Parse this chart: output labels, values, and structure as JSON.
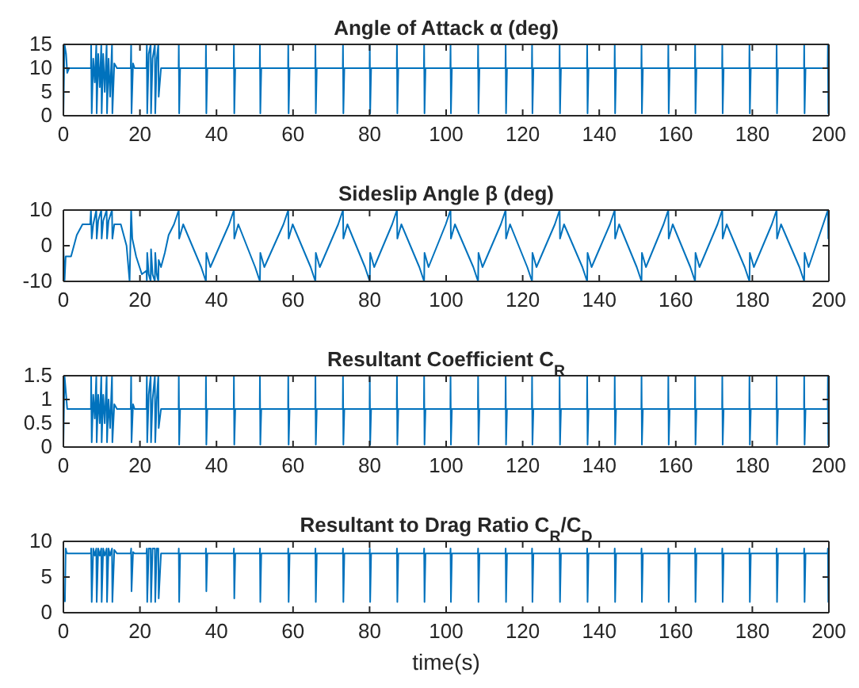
{
  "chart_data": [
    {
      "type": "line",
      "title": "Angle of Attack α (deg)",
      "color": "#0072bd",
      "xlim": [
        0,
        200
      ],
      "ylim": [
        0,
        15
      ],
      "xticks": [
        0,
        20,
        40,
        60,
        80,
        100,
        120,
        140,
        160,
        180,
        200
      ],
      "yticks": [
        0,
        5,
        10,
        15
      ],
      "x": [
        0,
        0.3,
        0.7,
        1,
        1.5,
        7.2,
        7.25,
        7.4,
        7.8,
        8.2,
        8.6,
        8.7,
        9.1,
        9.5,
        9.9,
        10,
        10.4,
        10.8,
        11.3,
        11.4,
        11.8,
        12.2,
        12.7,
        12.8,
        13.3,
        14,
        17.6,
        17.7,
        17.8,
        18.2,
        18.6,
        21.7,
        21.8,
        21.9,
        22.3,
        22.8,
        22.9,
        23.3,
        23.9,
        24,
        24.4,
        24.8,
        24.9,
        25.5,
        30.1,
        30.15,
        30.25,
        30.5,
        37.2,
        37.25,
        37.35,
        37.6,
        44.5,
        44.55,
        44.65,
        44.9,
        51.3,
        51.35,
        51.45,
        51.7,
        58.7,
        58.75,
        58.85,
        59.1,
        65.8,
        65.85,
        65.95,
        66.2,
        73,
        73.05,
        73.15,
        73.4,
        80,
        80.05,
        80.15,
        80.4,
        87.1,
        87.15,
        87.25,
        87.5,
        94.2,
        94.25,
        94.35,
        94.6,
        101.1,
        101.15,
        101.25,
        101.5,
        108.3,
        108.35,
        108.45,
        108.7,
        115.5,
        115.55,
        115.65,
        115.9,
        122.4,
        122.45,
        122.55,
        122.8,
        129.6,
        129.65,
        129.75,
        130,
        136.8,
        136.85,
        136.95,
        137.2,
        144,
        144.05,
        144.15,
        144.4,
        151,
        151.05,
        151.15,
        151.4,
        158,
        158.05,
        158.15,
        158.4,
        165,
        165.05,
        165.15,
        165.4,
        172.1,
        172.15,
        172.25,
        172.5,
        179.2,
        179.25,
        179.35,
        179.6,
        186.3,
        186.35,
        186.45,
        186.7,
        193.5,
        193.55,
        193.65,
        193.9,
        199.7,
        199.75,
        199.85,
        200
      ],
      "values": [
        0,
        15,
        13,
        9,
        10,
        10,
        15,
        0.5,
        12,
        7,
        15,
        0.5,
        13,
        6,
        15,
        0.5,
        13,
        5,
        15,
        0.5,
        12,
        4,
        15,
        0.5,
        11,
        10,
        10,
        15,
        0.5,
        11,
        10,
        10,
        15,
        0.5,
        13,
        15,
        0.5,
        12,
        15,
        0.5,
        12,
        15,
        4,
        10,
        10,
        15,
        0.5,
        10,
        10,
        15,
        0.5,
        10,
        10,
        15,
        0.5,
        10,
        10,
        15,
        0.5,
        10,
        10,
        15,
        0.5,
        10,
        10,
        15,
        0.5,
        10,
        10,
        15,
        0.5,
        10,
        10,
        15,
        0.5,
        10,
        10,
        15,
        0.5,
        10,
        10,
        15,
        0.5,
        10,
        10,
        15,
        0.5,
        10,
        10,
        15,
        0.5,
        10,
        10,
        15,
        0.5,
        10,
        10,
        15,
        0.5,
        10,
        10,
        15,
        0.5,
        10,
        10,
        15,
        0.5,
        10,
        10,
        15,
        0.5,
        10,
        10,
        15,
        0.5,
        10,
        10,
        15,
        0.5,
        10,
        10,
        15,
        0.5,
        10,
        10,
        15,
        0.5,
        10,
        10,
        15,
        0.5,
        10,
        10,
        15,
        0.5,
        10,
        10,
        15,
        0.5,
        10,
        10,
        15,
        0.5,
        10
      ]
    },
    {
      "type": "line",
      "title": "Sideslip Angle β (deg)",
      "color": "#0072bd",
      "xlim": [
        0,
        200
      ],
      "ylim": [
        -10,
        10
      ],
      "xticks": [
        0,
        20,
        40,
        60,
        80,
        100,
        120,
        140,
        160,
        180,
        200
      ],
      "yticks": [
        -10,
        0,
        10
      ],
      "x": [
        0,
        0.3,
        0.6,
        2,
        3.5,
        5,
        7,
        7.2,
        7.4,
        7.8,
        8.6,
        8.7,
        9.1,
        9.9,
        10,
        10.4,
        11.3,
        11.4,
        11.8,
        12.7,
        12.8,
        13.3,
        15,
        16.5,
        17.3,
        17.7,
        18,
        19,
        20.5,
        21.7,
        21.8,
        21.9,
        22.3,
        22.8,
        22.9,
        23.3,
        23.9,
        24,
        24.4,
        24.8,
        24.9,
        25.5,
        26.5,
        27.5,
        28.9,
        30.15,
        30.25,
        31.3,
        33.65,
        36,
        37.25,
        37.35,
        38.4,
        40.85,
        43.3,
        44.55,
        44.65,
        45.7,
        47.9,
        50.1,
        51.35,
        51.45,
        52.5,
        55,
        57.5,
        58.75,
        58.85,
        59.9,
        62.25,
        64.6,
        65.85,
        65.95,
        67,
        69.4,
        71.8,
        73.05,
        73.15,
        74.2,
        76.5,
        78.8,
        80.05,
        80.15,
        81.2,
        83.55,
        85.9,
        87.15,
        87.25,
        88.3,
        90.65,
        93,
        94.25,
        94.35,
        95.4,
        97.65,
        99.9,
        101.15,
        101.25,
        102.3,
        104.7,
        107.1,
        108.35,
        108.45,
        109.5,
        111.9,
        114.3,
        115.55,
        115.65,
        116.7,
        118.95,
        121.2,
        122.45,
        122.55,
        123.6,
        126,
        128.4,
        129.65,
        129.75,
        130.8,
        133.2,
        135.6,
        136.85,
        136.95,
        138,
        140.4,
        142.8,
        144.05,
        144.15,
        145.2,
        147.5,
        149.8,
        151.05,
        151.15,
        152.2,
        154.5,
        156.8,
        158.05,
        158.15,
        159.2,
        161.5,
        163.8,
        165.05,
        165.15,
        166.2,
        168.55,
        170.9,
        172.15,
        172.25,
        173.3,
        175.65,
        178,
        179.25,
        179.35,
        180.4,
        182.75,
        185.1,
        186.35,
        186.45,
        187.5,
        189.9,
        192.3,
        193.55,
        193.65,
        194.7,
        196.6,
        198.5,
        199.75,
        199.85,
        200
      ],
      "values": [
        0,
        -10,
        -3,
        -3,
        3,
        6,
        6,
        10,
        2,
        6,
        10,
        2,
        7,
        10,
        2,
        7,
        10,
        2,
        7,
        10,
        2,
        6,
        6,
        0,
        -10,
        10,
        2,
        -3,
        -8,
        -7,
        -10,
        -2,
        -8,
        -10,
        -1,
        -8,
        -10,
        -2,
        -8,
        -10,
        -4,
        -6,
        -2,
        3,
        6,
        10,
        2,
        6,
        0,
        -6,
        -10,
        -2,
        -6,
        0,
        6,
        10,
        2,
        6,
        0,
        -6,
        -10,
        -2,
        -6,
        0,
        6,
        10,
        2,
        6,
        0,
        -6,
        -10,
        -2,
        -6,
        0,
        6,
        10,
        2,
        6,
        0,
        -6,
        -10,
        -2,
        -6,
        0,
        6,
        10,
        2,
        6,
        0,
        -6,
        -10,
        -2,
        -6,
        0,
        6,
        10,
        2,
        6,
        0,
        -6,
        -10,
        -2,
        -6,
        0,
        6,
        10,
        2,
        6,
        0,
        -6,
        -10,
        -2,
        -6,
        0,
        6,
        10,
        2,
        6,
        0,
        -6,
        -10,
        -2,
        -6,
        0,
        6,
        10,
        2,
        6,
        0,
        -6,
        -10,
        -2,
        -6,
        0,
        6,
        10,
        2,
        6,
        0,
        -6,
        -10,
        -2,
        -6,
        0,
        6,
        10,
        2,
        6,
        0,
        -6,
        -10,
        -2,
        -6,
        0,
        6,
        10,
        2,
        6,
        0,
        -6,
        -10,
        -2,
        -6,
        0,
        6,
        10,
        2,
        6
      ]
    },
    {
      "type": "line",
      "title": "Resultant Coefficient C$_{R}$",
      "color": "#0072bd",
      "xlim": [
        0,
        200
      ],
      "ylim": [
        0,
        1.5
      ],
      "xticks": [
        0,
        20,
        40,
        60,
        80,
        100,
        120,
        140,
        160,
        180,
        200
      ],
      "yticks": [
        0,
        0.5,
        1,
        1.5
      ],
      "x": [
        0,
        0.3,
        0.7,
        1,
        1.5,
        7.2,
        7.25,
        7.4,
        7.8,
        8.2,
        8.6,
        8.7,
        9.1,
        9.5,
        9.9,
        10,
        10.4,
        10.8,
        11.3,
        11.4,
        11.8,
        12.2,
        12.7,
        12.8,
        13.3,
        14,
        17.6,
        17.7,
        17.8,
        18.2,
        18.6,
        21.7,
        21.8,
        21.9,
        22.3,
        22.8,
        22.9,
        23.3,
        23.9,
        24,
        24.4,
        24.8,
        24.9,
        25.5,
        30.1,
        30.15,
        30.25,
        30.5,
        37.2,
        37.25,
        37.35,
        37.6,
        44.5,
        44.55,
        44.65,
        44.9,
        51.3,
        51.35,
        51.45,
        51.7,
        58.7,
        58.75,
        58.85,
        59.1,
        65.8,
        65.85,
        65.95,
        66.2,
        73,
        73.05,
        73.15,
        73.4,
        80,
        80.05,
        80.15,
        80.4,
        87.1,
        87.15,
        87.25,
        87.5,
        94.2,
        94.25,
        94.35,
        94.6,
        101.1,
        101.15,
        101.25,
        101.5,
        108.3,
        108.35,
        108.45,
        108.7,
        115.5,
        115.55,
        115.65,
        115.9,
        122.4,
        122.45,
        122.55,
        122.8,
        129.6,
        129.65,
        129.75,
        130,
        136.8,
        136.85,
        136.95,
        137.2,
        144,
        144.05,
        144.15,
        144.4,
        151,
        151.05,
        151.15,
        151.4,
        158,
        158.05,
        158.15,
        158.4,
        165,
        165.05,
        165.15,
        165.4,
        172.1,
        172.15,
        172.25,
        172.5,
        179.2,
        179.25,
        179.35,
        179.6,
        186.3,
        186.35,
        186.45,
        186.7,
        193.5,
        193.55,
        193.65,
        193.9,
        199.7,
        199.75,
        199.85,
        200
      ],
      "values": [
        0.05,
        1.5,
        1.1,
        0.8,
        0.8,
        0.8,
        1.5,
        0.1,
        1.1,
        0.6,
        1.5,
        0.1,
        1.1,
        0.5,
        1.5,
        0.1,
        1.1,
        0.5,
        1.5,
        0.1,
        1,
        0.4,
        1.5,
        0.1,
        0.9,
        0.8,
        0.8,
        1.5,
        0.1,
        0.9,
        0.8,
        0.8,
        1.5,
        0.1,
        1.1,
        1.5,
        0.1,
        1,
        1.5,
        0.1,
        1,
        1.5,
        0.4,
        0.8,
        0.8,
        1.5,
        0.05,
        0.8,
        0.8,
        1.5,
        0.05,
        0.8,
        0.8,
        1.5,
        0.05,
        0.8,
        0.8,
        1.5,
        0.05,
        0.8,
        0.8,
        1.5,
        0.05,
        0.8,
        0.8,
        1.5,
        0.05,
        0.8,
        0.8,
        1.5,
        0.05,
        0.8,
        0.8,
        1.5,
        0.05,
        0.8,
        0.8,
        1.5,
        0.05,
        0.8,
        0.8,
        1.5,
        0.05,
        0.8,
        0.8,
        1.5,
        0.05,
        0.8,
        0.8,
        1.5,
        0.05,
        0.8,
        0.8,
        1.5,
        0.05,
        0.8,
        0.8,
        1.5,
        0.05,
        0.8,
        0.8,
        1.5,
        0.05,
        0.8,
        0.8,
        1.5,
        0.05,
        0.8,
        0.8,
        1.5,
        0.05,
        0.8,
        0.8,
        1.5,
        0.05,
        0.8,
        0.8,
        1.5,
        0.05,
        0.8,
        0.8,
        1.5,
        0.05,
        0.8,
        0.8,
        1.5,
        0.05,
        0.8,
        0.8,
        1.5,
        0.05,
        0.8,
        0.8,
        1.5,
        0.05,
        0.8,
        0.8,
        1.5,
        0.05,
        0.8,
        0.8,
        1.5,
        0.05,
        0.8
      ]
    },
    {
      "type": "line",
      "title": "Resultant to Drag Ratio C$_{R}$/C$_{D}$",
      "xlabel": "time(s)",
      "color": "#0072bd",
      "xlim": [
        0,
        200
      ],
      "ylim": [
        0,
        10
      ],
      "xticks": [
        0,
        20,
        40,
        60,
        80,
        100,
        120,
        140,
        160,
        180,
        200
      ],
      "yticks": [
        0,
        5,
        10
      ],
      "x": [
        0.4,
        0.6,
        0.8,
        1,
        1.5,
        7.2,
        7.25,
        7.4,
        7.8,
        8.2,
        8.6,
        8.7,
        9.1,
        9.5,
        9.9,
        10,
        10.4,
        10.8,
        11.3,
        11.4,
        11.8,
        12.2,
        12.7,
        12.8,
        13.3,
        14,
        17.6,
        17.7,
        17.8,
        18.2,
        18.6,
        21.7,
        21.8,
        21.9,
        22.3,
        22.8,
        22.9,
        23.3,
        23.9,
        24,
        24.4,
        24.8,
        24.9,
        25.5,
        30.1,
        30.15,
        30.25,
        30.5,
        37.2,
        37.25,
        37.35,
        37.6,
        44.5,
        44.55,
        44.65,
        44.9,
        51.3,
        51.35,
        51.45,
        51.7,
        58.7,
        58.75,
        58.85,
        59.1,
        65.8,
        65.85,
        65.95,
        66.2,
        73,
        73.05,
        73.15,
        73.4,
        80,
        80.05,
        80.15,
        80.4,
        87.1,
        87.15,
        87.25,
        87.5,
        94.2,
        94.25,
        94.35,
        94.6,
        101.1,
        101.15,
        101.25,
        101.5,
        108.3,
        108.35,
        108.45,
        108.7,
        115.5,
        115.55,
        115.65,
        115.9,
        122.4,
        122.45,
        122.55,
        122.8,
        129.6,
        129.65,
        129.75,
        130,
        136.8,
        136.85,
        136.95,
        137.2,
        144,
        144.05,
        144.15,
        144.4,
        151,
        151.05,
        151.15,
        151.4,
        158,
        158.05,
        158.15,
        158.4,
        165,
        165.05,
        165.15,
        165.4,
        172.1,
        172.15,
        172.25,
        172.5,
        179.2,
        179.25,
        179.35,
        179.6,
        186.3,
        186.35,
        186.45,
        186.7,
        193.5,
        193.55,
        193.65,
        193.9,
        199.7,
        199.75,
        199.85,
        200
      ],
      "values": [
        1.5,
        9,
        8.5,
        8.3,
        8.3,
        8.3,
        9,
        1.5,
        9,
        8,
        9,
        1.5,
        9,
        8,
        9,
        1.5,
        9,
        8,
        9,
        1.5,
        9,
        8,
        9,
        1.5,
        8.8,
        8.3,
        8.3,
        9,
        3,
        8.5,
        8.3,
        8.3,
        9,
        1.5,
        9,
        9,
        1.5,
        9,
        9,
        1.5,
        9,
        9,
        2,
        8.3,
        8.3,
        9,
        1.5,
        8.3,
        8.3,
        9,
        3,
        8.3,
        8.3,
        9,
        2,
        8.3,
        8.3,
        9,
        1.5,
        8.3,
        8.3,
        9,
        1.5,
        8.3,
        8.3,
        9,
        1.5,
        8.3,
        8.3,
        9,
        1.5,
        8.3,
        8.3,
        9,
        1.5,
        8.3,
        8.3,
        9,
        1.5,
        8.3,
        8.3,
        9,
        1.5,
        8.3,
        8.3,
        9,
        1.5,
        8.3,
        8.3,
        9,
        1.5,
        8.3,
        8.3,
        9,
        1.5,
        8.3,
        8.3,
        9,
        1.5,
        8.3,
        8.3,
        9,
        1.5,
        8.3,
        8.3,
        9,
        1.5,
        8.3,
        8.3,
        9,
        1.5,
        8.3,
        8.3,
        9,
        1.5,
        8.3,
        8.3,
        9,
        1.5,
        8.3,
        8.3,
        9,
        1.5,
        8.3,
        8.3,
        9,
        1.5,
        8.3,
        8.3,
        9,
        1.5,
        8.3,
        8.3,
        9,
        1.5,
        8.3,
        8.3,
        9,
        1.5,
        8.3,
        8.3,
        9,
        1.5,
        8.3
      ]
    }
  ]
}
